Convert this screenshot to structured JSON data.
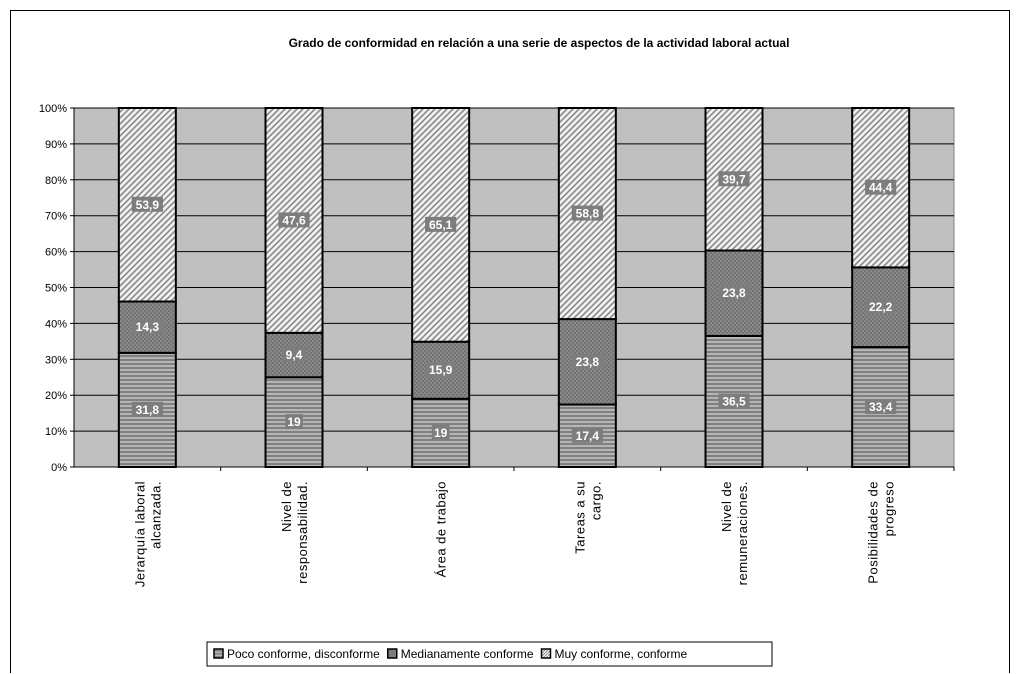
{
  "chart_data": {
    "type": "bar",
    "stacked": true,
    "percent": true,
    "title": "Grado de conformidad en relación a una serie de aspectos de la actividad laboral actual",
    "categories": [
      [
        "Jerarquía laboral",
        "alcanzada."
      ],
      [
        "Nivel de",
        "responsabilidad."
      ],
      [
        "Área de trabajo"
      ],
      [
        "Tareas a su",
        "cargo."
      ],
      [
        "Nivel de",
        "remuneraciones."
      ],
      [
        "Posibilidades de",
        "progreso"
      ]
    ],
    "series": [
      {
        "name": "Poco conforme, disconforme",
        "values": [
          31.8,
          19,
          19,
          17.4,
          36.5,
          33.4
        ],
        "labels": [
          "31,8",
          "19",
          "19",
          "17,4",
          "36,5",
          "33,4"
        ],
        "pattern": "horizontal-stripes",
        "color": "#7a7a7a"
      },
      {
        "name": "Medianamente conforme",
        "values": [
          14.3,
          9.4,
          15.9,
          23.8,
          23.8,
          22.2
        ],
        "labels": [
          "14,3",
          "9,4",
          "15,9",
          "23,8",
          "23,8",
          "22,2"
        ],
        "pattern": "crosshatch",
        "color": "#707070"
      },
      {
        "name": "Muy conforme, conforme",
        "values": [
          53.9,
          47.6,
          65.1,
          58.8,
          39.7,
          44.4
        ],
        "labels": [
          "53,9",
          "47,6",
          "65,1",
          "58,8",
          "39,7",
          "44,4"
        ],
        "pattern": "diagonal-stripes",
        "color": "#9a9a9a"
      }
    ],
    "yticks": [
      "0%",
      "10%",
      "20%",
      "30%",
      "40%",
      "50%",
      "60%",
      "70%",
      "80%",
      "90%",
      "100%"
    ],
    "ylim": [
      0,
      100
    ],
    "grid": true,
    "plot_background": "#c0c0c0",
    "legend_position": "bottom"
  }
}
